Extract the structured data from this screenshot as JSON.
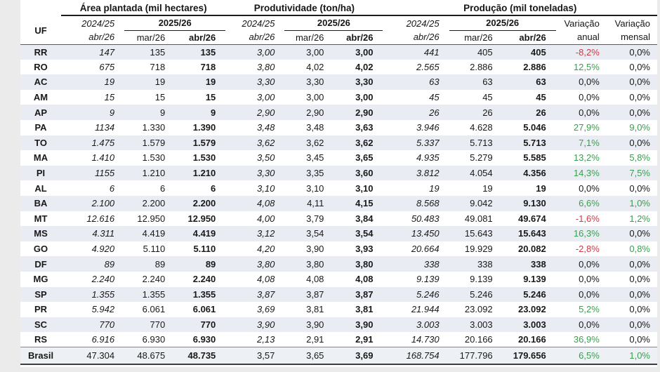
{
  "table": {
    "header": {
      "uf_label": "UF",
      "groups": [
        {
          "title": "Área plantada (mil hectares)"
        },
        {
          "title": "Produtividade (ton/ha)"
        },
        {
          "title": "Produção (mil toneladas)"
        }
      ],
      "season_prev": "2024/25",
      "season_cur": "2025/26",
      "sub_prev": "abr/26",
      "sub_mar": "mar/26",
      "sub_abr": "abr/26",
      "var_annual": {
        "line1": "Variação",
        "line2": "anual"
      },
      "var_monthly": {
        "line1": "Variação",
        "line2": "mensal"
      }
    },
    "rows": [
      {
        "uf": "RR",
        "ap": [
          "147",
          "135",
          "135"
        ],
        "pr": [
          "3,00",
          "3,00",
          "3,00"
        ],
        "pd": [
          "441",
          "405",
          "405"
        ],
        "va": "-8,2%",
        "vm": "0,0%"
      },
      {
        "uf": "RO",
        "ap": [
          "675",
          "718",
          "718"
        ],
        "pr": [
          "3,80",
          "4,02",
          "4,02"
        ],
        "pd": [
          "2.565",
          "2.886",
          "2.886"
        ],
        "va": "12,5%",
        "vm": "0,0%"
      },
      {
        "uf": "AC",
        "ap": [
          "19",
          "19",
          "19"
        ],
        "pr": [
          "3,30",
          "3,30",
          "3,30"
        ],
        "pd": [
          "63",
          "63",
          "63"
        ],
        "va": "0,0%",
        "vm": "0,0%"
      },
      {
        "uf": "AM",
        "ap": [
          "15",
          "15",
          "15"
        ],
        "pr": [
          "3,00",
          "3,00",
          "3,00"
        ],
        "pd": [
          "45",
          "45",
          "45"
        ],
        "va": "0,0%",
        "vm": "0,0%"
      },
      {
        "uf": "AP",
        "ap": [
          "9",
          "9",
          "9"
        ],
        "pr": [
          "2,90",
          "2,90",
          "2,90"
        ],
        "pd": [
          "26",
          "26",
          "26"
        ],
        "va": "0,0%",
        "vm": "0,0%"
      },
      {
        "uf": "PA",
        "ap": [
          "1134",
          "1.330",
          "1.390"
        ],
        "pr": [
          "3,48",
          "3,48",
          "3,63"
        ],
        "pd": [
          "3.946",
          "4.628",
          "5.046"
        ],
        "va": "27,9%",
        "vm": "9,0%"
      },
      {
        "uf": "TO",
        "ap": [
          "1.475",
          "1.579",
          "1.579"
        ],
        "pr": [
          "3,62",
          "3,62",
          "3,62"
        ],
        "pd": [
          "5.337",
          "5.713",
          "5.713"
        ],
        "va": "7,1%",
        "vm": "0,0%"
      },
      {
        "uf": "MA",
        "ap": [
          "1.410",
          "1.530",
          "1.530"
        ],
        "pr": [
          "3,50",
          "3,45",
          "3,65"
        ],
        "pd": [
          "4.935",
          "5.279",
          "5.585"
        ],
        "va": "13,2%",
        "vm": "5,8%"
      },
      {
        "uf": "PI",
        "ap": [
          "1155",
          "1.210",
          "1.210"
        ],
        "pr": [
          "3,30",
          "3,35",
          "3,60"
        ],
        "pd": [
          "3.812",
          "4.054",
          "4.356"
        ],
        "va": "14,3%",
        "vm": "7,5%"
      },
      {
        "uf": "AL",
        "ap": [
          "6",
          "6",
          "6"
        ],
        "pr": [
          "3,10",
          "3,10",
          "3,10"
        ],
        "pd": [
          "19",
          "19",
          "19"
        ],
        "va": "0,0%",
        "vm": "0,0%"
      },
      {
        "uf": "BA",
        "ap": [
          "2.100",
          "2.200",
          "2.200"
        ],
        "pr": [
          "4,08",
          "4,11",
          "4,15"
        ],
        "pd": [
          "8.568",
          "9.042",
          "9.130"
        ],
        "va": "6,6%",
        "vm": "1,0%"
      },
      {
        "uf": "MT",
        "ap": [
          "12.616",
          "12.950",
          "12.950"
        ],
        "pr": [
          "4,00",
          "3,79",
          "3,84"
        ],
        "pd": [
          "50.483",
          "49.081",
          "49.674"
        ],
        "va": "-1,6%",
        "vm": "1,2%"
      },
      {
        "uf": "MS",
        "ap": [
          "4.311",
          "4.419",
          "4.419"
        ],
        "pr": [
          "3,12",
          "3,54",
          "3,54"
        ],
        "pd": [
          "13.450",
          "15.643",
          "15.643"
        ],
        "va": "16,3%",
        "vm": "0,0%"
      },
      {
        "uf": "GO",
        "ap": [
          "4.920",
          "5.110",
          "5.110"
        ],
        "pr": [
          "4,20",
          "3,90",
          "3,93"
        ],
        "pd": [
          "20.664",
          "19.929",
          "20.082"
        ],
        "va": "-2,8%",
        "vm": "0,8%"
      },
      {
        "uf": "DF",
        "ap": [
          "89",
          "89",
          "89"
        ],
        "pr": [
          "3,80",
          "3,80",
          "3,80"
        ],
        "pd": [
          "338",
          "338",
          "338"
        ],
        "va": "0,0%",
        "vm": "0,0%"
      },
      {
        "uf": "MG",
        "ap": [
          "2.240",
          "2.240",
          "2.240"
        ],
        "pr": [
          "4,08",
          "4,08",
          "4,08"
        ],
        "pd": [
          "9.139",
          "9.139",
          "9.139"
        ],
        "va": "0,0%",
        "vm": "0,0%"
      },
      {
        "uf": "SP",
        "ap": [
          "1.355",
          "1.355",
          "1.355"
        ],
        "pr": [
          "3,87",
          "3,87",
          "3,87"
        ],
        "pd": [
          "5.246",
          "5.246",
          "5.246"
        ],
        "va": "0,0%",
        "vm": "0,0%"
      },
      {
        "uf": "PR",
        "ap": [
          "5.942",
          "6.061",
          "6.061"
        ],
        "pr": [
          "3,69",
          "3,81",
          "3,81"
        ],
        "pd": [
          "21.944",
          "23.092",
          "23.092"
        ],
        "va": "5,2%",
        "vm": "0,0%"
      },
      {
        "uf": "SC",
        "ap": [
          "770",
          "770",
          "770"
        ],
        "pr": [
          "3,90",
          "3,90",
          "3,90"
        ],
        "pd": [
          "3.003",
          "3.003",
          "3.003"
        ],
        "va": "0,0%",
        "vm": "0,0%"
      },
      {
        "uf": "RS",
        "ap": [
          "6.916",
          "6.930",
          "6.930"
        ],
        "pr": [
          "2,13",
          "2,91",
          "2,91"
        ],
        "pd": [
          "14.730",
          "20.166",
          "20.166"
        ],
        "va": "36,9%",
        "vm": "0,0%"
      }
    ],
    "total": {
      "uf": "Brasil",
      "ap": [
        "47.304",
        "48.675",
        "48.735"
      ],
      "pr": [
        "3,57",
        "3,65",
        "3,69"
      ],
      "pd": [
        "168.754",
        "177.796",
        "179.656"
      ],
      "va": "6,5%",
      "vm": "1,0%"
    }
  },
  "colors": {
    "positive": "#3b9e4f",
    "negative": "#cd3a44",
    "stripe": "#e9edf3",
    "total_bg": "#edf0f4"
  }
}
